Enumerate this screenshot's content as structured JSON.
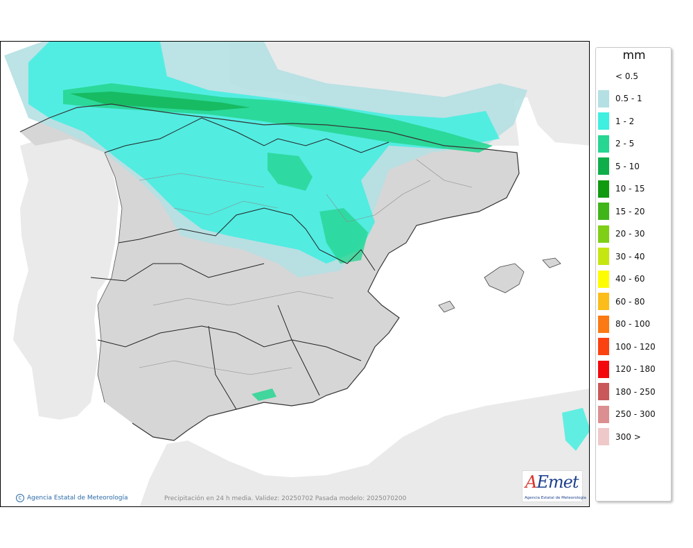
{
  "map": {
    "attribution": "Agencia Estatal de Meteorología",
    "caption": "Precipitación en 24 h media. Validez: 20250702 Pasada modelo: 2025070200",
    "logo_text": "AEmet",
    "logo_subtitle": "Agencia Estatal de Meteorología",
    "colors": {
      "sea": "#ffffff",
      "foreign_land": "#eaeaea",
      "spain_land": "#d6d6d6"
    }
  },
  "legend": {
    "unit": "mm",
    "items": [
      {
        "label": "< 0.5",
        "color": "#ffffff"
      },
      {
        "label": "0.5 - 1",
        "color": "#b5e0e3"
      },
      {
        "label": "1 - 2",
        "color": "#3fefe0"
      },
      {
        "label": "2 - 5",
        "color": "#27d692"
      },
      {
        "label": "5 - 10",
        "color": "#0fae4a"
      },
      {
        "label": "10 - 15",
        "color": "#109a10"
      },
      {
        "label": "15 - 20",
        "color": "#3fb51a"
      },
      {
        "label": "20 - 30",
        "color": "#7fcf17"
      },
      {
        "label": "30 - 40",
        "color": "#c6e612"
      },
      {
        "label": "40 - 60",
        "color": "#fdfd00"
      },
      {
        "label": "60 - 80",
        "color": "#fcbd1a"
      },
      {
        "label": "80 - 100",
        "color": "#fb7a13"
      },
      {
        "label": "100 - 120",
        "color": "#fb4211"
      },
      {
        "label": "120 - 180",
        "color": "#f3070d"
      },
      {
        "label": "180 - 250",
        "color": "#c8585a"
      },
      {
        "label": "250 - 300",
        "color": "#dc8f90"
      },
      {
        "label": "300 >",
        "color": "#efc9c9"
      }
    ]
  }
}
